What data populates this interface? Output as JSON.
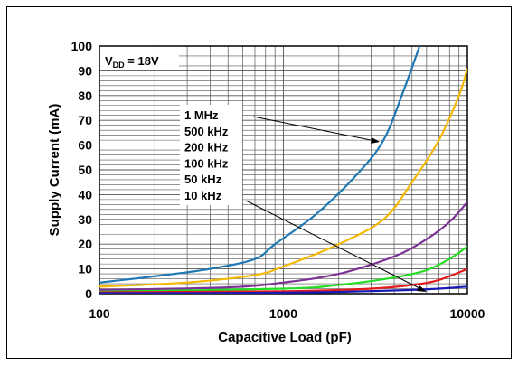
{
  "chart_data": {
    "type": "line",
    "xlabel": "Capacitive Load (pF)",
    "ylabel": "Supply Current (mA)",
    "x_scale": "log",
    "xlim": [
      100,
      10000
    ],
    "ylim": [
      0,
      100
    ],
    "x_ticks": [
      "100",
      "1000",
      "10000"
    ],
    "y_ticks": [
      "0",
      "10",
      "20",
      "30",
      "40",
      "50",
      "60",
      "70",
      "80",
      "90",
      "100"
    ],
    "grid": true,
    "annotation": {
      "main": "V",
      "sub": "DD",
      "suffix": " = 18V"
    },
    "legend_labels": [
      "1 MHz",
      "500 kHz",
      "200 kHz",
      "100 kHz",
      "50 kHz",
      "10 kHz"
    ],
    "series": [
      {
        "name": "1 MHz",
        "color": "#1f78b4",
        "points": [
          [
            100,
            4.5
          ],
          [
            200,
            7
          ],
          [
            400,
            10
          ],
          [
            700,
            14
          ],
          [
            900,
            20
          ],
          [
            1500,
            32
          ],
          [
            2500,
            48
          ],
          [
            3500,
            62
          ],
          [
            4500,
            82
          ],
          [
            5500,
            100
          ]
        ]
      },
      {
        "name": "500 kHz",
        "color": "#f5b800",
        "points": [
          [
            100,
            2.8
          ],
          [
            300,
            4.5
          ],
          [
            700,
            7.5
          ],
          [
            1000,
            11
          ],
          [
            2000,
            20
          ],
          [
            3500,
            30
          ],
          [
            5000,
            45
          ],
          [
            7000,
            62
          ],
          [
            9000,
            80
          ],
          [
            10000,
            91
          ]
        ]
      },
      {
        "name": "200 kHz",
        "color": "#7b3294",
        "points": [
          [
            100,
            1.5
          ],
          [
            500,
            2.5
          ],
          [
            1000,
            4.5
          ],
          [
            2000,
            8
          ],
          [
            4000,
            15
          ],
          [
            6000,
            22
          ],
          [
            8000,
            29
          ],
          [
            10000,
            37
          ]
        ]
      },
      {
        "name": "100 kHz",
        "color": "#22dd22",
        "points": [
          [
            100,
            0.8
          ],
          [
            1000,
            2
          ],
          [
            2000,
            3.5
          ],
          [
            4000,
            6.5
          ],
          [
            6000,
            9.5
          ],
          [
            8000,
            14
          ],
          [
            10000,
            19
          ]
        ]
      },
      {
        "name": "50 kHz",
        "color": "#e41a1c",
        "points": [
          [
            100,
            0.5
          ],
          [
            1000,
            1
          ],
          [
            3000,
            2
          ],
          [
            5000,
            3.5
          ],
          [
            7000,
            5.5
          ],
          [
            10000,
            10
          ]
        ]
      },
      {
        "name": "10 kHz",
        "color": "#1a1ab4",
        "points": [
          [
            100,
            0.2
          ],
          [
            1000,
            0.4
          ],
          [
            5000,
            1.5
          ],
          [
            10000,
            2.8
          ]
        ]
      }
    ]
  }
}
